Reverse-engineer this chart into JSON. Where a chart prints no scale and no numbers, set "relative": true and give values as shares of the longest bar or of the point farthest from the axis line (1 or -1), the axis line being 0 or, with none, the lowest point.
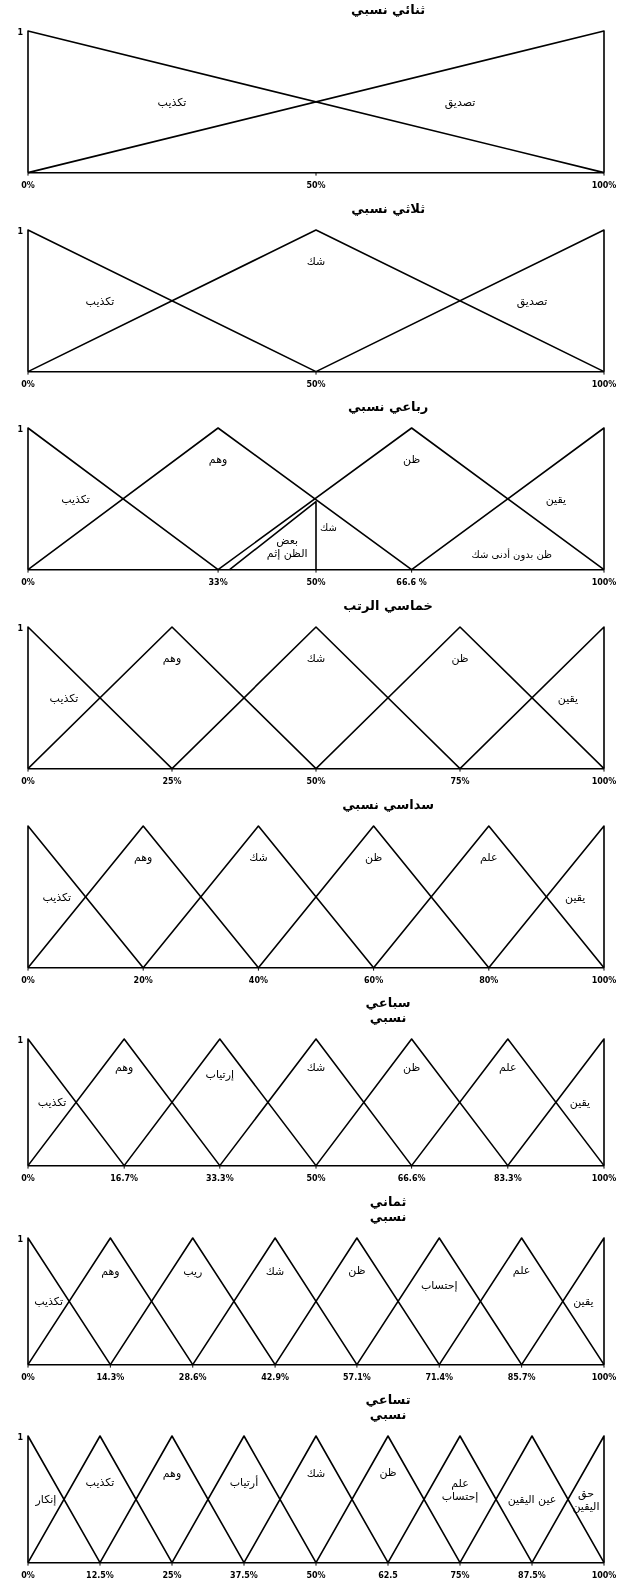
{
  "chart_data": [
    {
      "type": "line",
      "title": "ثنائي نسبي",
      "relative": true,
      "xlim": [
        0,
        100
      ],
      "xticks": [
        {
          "value": 0,
          "label": "0%"
        },
        {
          "value": 50,
          "label": "50%"
        },
        {
          "value": 100,
          "label": "100%"
        }
      ],
      "annotations": [
        "1"
      ],
      "series": [
        {
          "name": "تكذيب",
          "color": "#000000",
          "x": [
            0,
            0,
            100
          ],
          "values": [
            0,
            1,
            0
          ]
        },
        {
          "name": "تصديق",
          "color": "#000000",
          "x": [
            0,
            100,
            100
          ],
          "values": [
            0,
            1,
            0
          ]
        }
      ]
    },
    {
      "type": "line",
      "title": "ثلاثي نسبي",
      "relative": true,
      "xlim": [
        0,
        100
      ],
      "xticks": [
        {
          "value": 0,
          "label": "0%"
        },
        {
          "value": 50,
          "label": "50%"
        },
        {
          "value": 100,
          "label": "100%"
        }
      ],
      "annotations": [
        "1"
      ],
      "series": [
        {
          "name": "تكذيب",
          "color": "#000000",
          "x": [
            0,
            0,
            50
          ],
          "values": [
            0,
            1,
            0
          ]
        },
        {
          "name": "شك",
          "color": "#000000",
          "x": [
            0,
            50,
            100
          ],
          "values": [
            0,
            1,
            0
          ]
        },
        {
          "name": "تصديق",
          "color": "#000000",
          "x": [
            50,
            100,
            100
          ],
          "values": [
            0,
            1,
            0
          ]
        }
      ]
    },
    {
      "type": "line",
      "title": "رباعي نسبي",
      "relative": true,
      "xlim": [
        0,
        100
      ],
      "xticks": [
        {
          "value": 0,
          "label": "0%"
        },
        {
          "value": 33,
          "label": "33%"
        },
        {
          "value": 50,
          "label": "50%"
        },
        {
          "value": 66.6,
          "label": "66.6 %"
        },
        {
          "value": 100,
          "label": "100%"
        }
      ],
      "annotations": [
        "1",
        {
          "text": "شك",
          "x": 50,
          "y": 0.3
        },
        "ظن بدون أدنى شك"
      ],
      "series": [
        {
          "name": "تكذيب",
          "color": "#000000",
          "x": [
            0,
            0,
            33
          ],
          "values": [
            0,
            1,
            0
          ]
        },
        {
          "name": "وهم",
          "color": "#000000",
          "x": [
            0,
            33,
            66.6
          ],
          "values": [
            0,
            1,
            0
          ]
        },
        {
          "name": "ظن",
          "color": "#000000",
          "x": [
            33,
            66.6,
            100
          ],
          "values": [
            0,
            1,
            0
          ]
        },
        {
          "name": "يقين",
          "color": "#000000",
          "x": [
            66.6,
            100,
            100
          ],
          "values": [
            0,
            1,
            0
          ]
        },
        {
          "name": "بعض\nالظن إثم",
          "color": "#000000",
          "x": [
            35,
            50,
            50
          ],
          "values": [
            0,
            0.48,
            0
          ]
        }
      ]
    },
    {
      "type": "line",
      "title": "خماسي الرتب",
      "relative": true,
      "xlim": [
        0,
        100
      ],
      "xticks": [
        {
          "value": 0,
          "label": "0%"
        },
        {
          "value": 25,
          "label": "25%"
        },
        {
          "value": 50,
          "label": "50%"
        },
        {
          "value": 75,
          "label": "75%"
        },
        {
          "value": 100,
          "label": "100%"
        }
      ],
      "annotations": [
        "1"
      ],
      "series": [
        {
          "name": "تكذيب",
          "color": "#000000",
          "x": [
            0,
            0,
            25
          ],
          "values": [
            0,
            1,
            0
          ]
        },
        {
          "name": "وهم",
          "color": "#000000",
          "x": [
            0,
            25,
            50
          ],
          "values": [
            0,
            1,
            0
          ]
        },
        {
          "name": "شك",
          "color": "#000000",
          "x": [
            25,
            50,
            75
          ],
          "values": [
            0,
            1,
            0
          ]
        },
        {
          "name": "ظن",
          "color": "#000000",
          "x": [
            50,
            75,
            100
          ],
          "values": [
            0,
            1,
            0
          ]
        },
        {
          "name": "يقين",
          "color": "#000000",
          "x": [
            75,
            100,
            100
          ],
          "values": [
            0,
            1,
            0
          ]
        }
      ]
    },
    {
      "type": "line",
      "title": "سداسي نسبي",
      "relative": true,
      "xlim": [
        0,
        100
      ],
      "xticks": [
        {
          "value": 0,
          "label": "0%"
        },
        {
          "value": 20,
          "label": "20%"
        },
        {
          "value": 40,
          "label": "40%"
        },
        {
          "value": 60,
          "label": "60%"
        },
        {
          "value": 80,
          "label": "80%"
        },
        {
          "value": 100,
          "label": "100%"
        }
      ],
      "series": [
        {
          "name": "تكذيب",
          "color": "#000000",
          "x": [
            0,
            0,
            20
          ],
          "values": [
            0,
            1,
            0
          ]
        },
        {
          "name": "وهم",
          "color": "#000000",
          "x": [
            0,
            20,
            40
          ],
          "values": [
            0,
            1,
            0
          ]
        },
        {
          "name": "شك",
          "color": "#000000",
          "x": [
            20,
            40,
            60
          ],
          "values": [
            0,
            1,
            0
          ]
        },
        {
          "name": "ظن",
          "color": "#000000",
          "x": [
            40,
            60,
            80
          ],
          "values": [
            0,
            1,
            0
          ]
        },
        {
          "name": "علم",
          "color": "#000000",
          "x": [
            60,
            80,
            100
          ],
          "values": [
            0,
            1,
            0
          ]
        },
        {
          "name": "يقين",
          "color": "#000000",
          "x": [
            80,
            100,
            100
          ],
          "values": [
            0,
            1,
            0
          ]
        }
      ]
    },
    {
      "type": "line",
      "title": "سباعي\nنسبي",
      "relative": true,
      "xlim": [
        0,
        100
      ],
      "xticks": [
        {
          "value": 0,
          "label": "0%"
        },
        {
          "value": 16.7,
          "label": "16.7%"
        },
        {
          "value": 33.3,
          "label": "33.3%"
        },
        {
          "value": 50,
          "label": "50%"
        },
        {
          "value": 66.6,
          "label": "66.6%"
        },
        {
          "value": 83.3,
          "label": "83.3%"
        },
        {
          "value": 100,
          "label": "100%"
        }
      ],
      "annotations": [
        "1"
      ],
      "series": [
        {
          "name": "تكذيب",
          "color": "#000000",
          "x": [
            0,
            0,
            16.7
          ],
          "values": [
            0,
            1,
            0
          ]
        },
        {
          "name": "وهم",
          "color": "#000000",
          "x": [
            0,
            16.7,
            33.3
          ],
          "values": [
            0,
            1,
            0
          ]
        },
        {
          "name": "إرتياب",
          "color": "#000000",
          "x": [
            16.7,
            33.3,
            50
          ],
          "values": [
            0,
            1,
            0
          ]
        },
        {
          "name": "شك",
          "color": "#000000",
          "x": [
            33.3,
            50,
            66.6
          ],
          "values": [
            0,
            1,
            0
          ]
        },
        {
          "name": "ظن",
          "color": "#000000",
          "x": [
            50,
            66.6,
            83.3
          ],
          "values": [
            0,
            1,
            0
          ]
        },
        {
          "name": "علم",
          "color": "#000000",
          "x": [
            66.6,
            83.3,
            100
          ],
          "values": [
            0,
            1,
            0
          ]
        },
        {
          "name": "يقين",
          "color": "#000000",
          "x": [
            83.3,
            100,
            100
          ],
          "values": [
            0,
            1,
            0
          ]
        }
      ]
    },
    {
      "type": "line",
      "title": "ثماني\nنسبي",
      "relative": true,
      "xlim": [
        0,
        100
      ],
      "xticks": [
        {
          "value": 0,
          "label": "0%"
        },
        {
          "value": 14.3,
          "label": "14.3%"
        },
        {
          "value": 28.6,
          "label": "28.6%"
        },
        {
          "value": 42.9,
          "label": "42.9%"
        },
        {
          "value": 57.1,
          "label": "57.1%"
        },
        {
          "value": 71.4,
          "label": "71.4%"
        },
        {
          "value": 85.7,
          "label": "85.7%"
        },
        {
          "value": 100,
          "label": "100%"
        }
      ],
      "annotations": [
        "1"
      ],
      "series": [
        {
          "name": "تكذيب",
          "color": "#000000",
          "x": [
            0,
            0,
            14.3
          ],
          "values": [
            0,
            1,
            0
          ]
        },
        {
          "name": "وهم",
          "color": "#000000",
          "x": [
            0,
            14.3,
            28.6
          ],
          "values": [
            0,
            1,
            0
          ]
        },
        {
          "name": "ريب",
          "color": "#000000",
          "x": [
            14.3,
            28.6,
            42.9
          ],
          "values": [
            0,
            1,
            0
          ]
        },
        {
          "name": "شك",
          "color": "#000000",
          "x": [
            28.6,
            42.9,
            57.1
          ],
          "values": [
            0,
            1,
            0
          ]
        },
        {
          "name": "ظن",
          "color": "#000000",
          "x": [
            42.9,
            57.1,
            71.4
          ],
          "values": [
            0,
            1,
            0
          ]
        },
        {
          "name": "إحتساب",
          "color": "#000000",
          "x": [
            57.1,
            71.4,
            85.7
          ],
          "values": [
            0,
            1,
            0
          ]
        },
        {
          "name": "علم",
          "color": "#000000",
          "x": [
            71.4,
            85.7,
            100
          ],
          "values": [
            0,
            1,
            0
          ]
        },
        {
          "name": "يقين",
          "color": "#000000",
          "x": [
            85.7,
            100,
            100
          ],
          "values": [
            0,
            1,
            0
          ]
        }
      ]
    },
    {
      "type": "line",
      "title": "تساعي\nنسبي",
      "relative": true,
      "xlim": [
        0,
        100
      ],
      "xticks": [
        {
          "value": 0,
          "label": "0%"
        },
        {
          "value": 12.5,
          "label": "12.5%"
        },
        {
          "value": 25,
          "label": "25%"
        },
        {
          "value": 37.5,
          "label": "37.5%"
        },
        {
          "value": 50,
          "label": "50%"
        },
        {
          "value": 62.5,
          "label": "62.5"
        },
        {
          "value": 75,
          "label": "75%"
        },
        {
          "value": 87.5,
          "label": "87.5%"
        },
        {
          "value": 100,
          "label": "100%"
        }
      ],
      "annotations": [
        "1"
      ],
      "series": [
        {
          "name": "إنكار",
          "color": "#000000",
          "x": [
            0,
            0,
            12.5
          ],
          "values": [
            0,
            1,
            0
          ]
        },
        {
          "name": "تكذيب",
          "color": "#000000",
          "x": [
            0,
            12.5,
            25
          ],
          "values": [
            0,
            1,
            0
          ]
        },
        {
          "name": "وهم",
          "color": "#000000",
          "x": [
            12.5,
            25,
            37.5
          ],
          "values": [
            0,
            1,
            0
          ]
        },
        {
          "name": "أرتياب",
          "color": "#000000",
          "x": [
            25,
            37.5,
            50
          ],
          "values": [
            0,
            1,
            0
          ]
        },
        {
          "name": "شك",
          "color": "#000000",
          "x": [
            37.5,
            50,
            62.5
          ],
          "values": [
            0,
            1,
            0
          ]
        },
        {
          "name": "ظن",
          "color": "#000000",
          "x": [
            50,
            62.5,
            75
          ],
          "values": [
            0,
            1,
            0
          ]
        },
        {
          "name": "علم\nإحتساب",
          "color": "#000000",
          "x": [
            62.5,
            75,
            87.5
          ],
          "values": [
            0,
            1,
            0
          ]
        },
        {
          "name": "عين اليقين",
          "color": "#000000",
          "x": [
            75,
            87.5,
            100
          ],
          "values": [
            0,
            1,
            0
          ]
        },
        {
          "name": "حق\nاليقين",
          "color": "#000000",
          "x": [
            87.5,
            100,
            100
          ],
          "values": [
            0,
            1,
            0
          ]
        }
      ]
    }
  ]
}
